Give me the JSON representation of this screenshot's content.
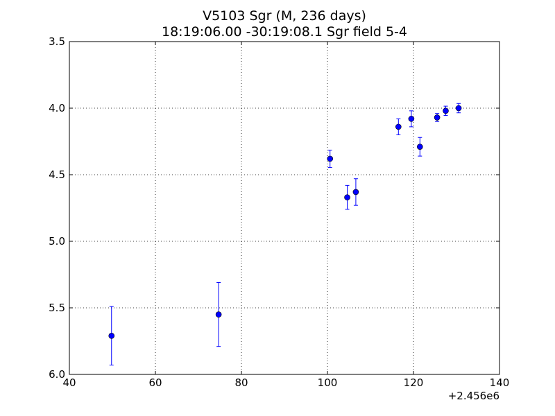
{
  "chart_data": {
    "type": "scatter",
    "title": "V5103 Sgr  (M, 236 days)",
    "subtitle": "18:19:06.00 -30:19:08.1 Sgr field 5-4",
    "xlabel": "",
    "ylabel": "",
    "x_offset_label": "+2.456e6",
    "xlim": [
      40,
      140
    ],
    "ylim": [
      6.0,
      3.5
    ],
    "y_inverted": true,
    "grid": true,
    "marker_color": "#0000ff",
    "xticks": [
      40,
      60,
      80,
      100,
      120,
      140
    ],
    "xtick_labels": [
      "40",
      "60",
      "80",
      "100",
      "120",
      "140"
    ],
    "yticks": [
      3.5,
      4.0,
      4.5,
      5.0,
      5.5,
      6.0
    ],
    "ytick_labels": [
      "3.5",
      "4.0",
      "4.5",
      "5.0",
      "5.5",
      "6.0"
    ],
    "points": [
      {
        "x": 49.8,
        "y": 5.71,
        "err": 0.22
      },
      {
        "x": 74.7,
        "y": 5.55,
        "err": 0.24
      },
      {
        "x": 100.6,
        "y": 4.38,
        "err": 0.065
      },
      {
        "x": 104.6,
        "y": 4.67,
        "err": 0.09
      },
      {
        "x": 106.6,
        "y": 4.63,
        "err": 0.1
      },
      {
        "x": 116.5,
        "y": 4.14,
        "err": 0.06
      },
      {
        "x": 119.5,
        "y": 4.08,
        "err": 0.06
      },
      {
        "x": 121.5,
        "y": 4.29,
        "err": 0.07
      },
      {
        "x": 125.5,
        "y": 4.07,
        "err": 0.03
      },
      {
        "x": 127.5,
        "y": 4.02,
        "err": 0.035
      },
      {
        "x": 130.5,
        "y": 4.0,
        "err": 0.035
      }
    ]
  }
}
